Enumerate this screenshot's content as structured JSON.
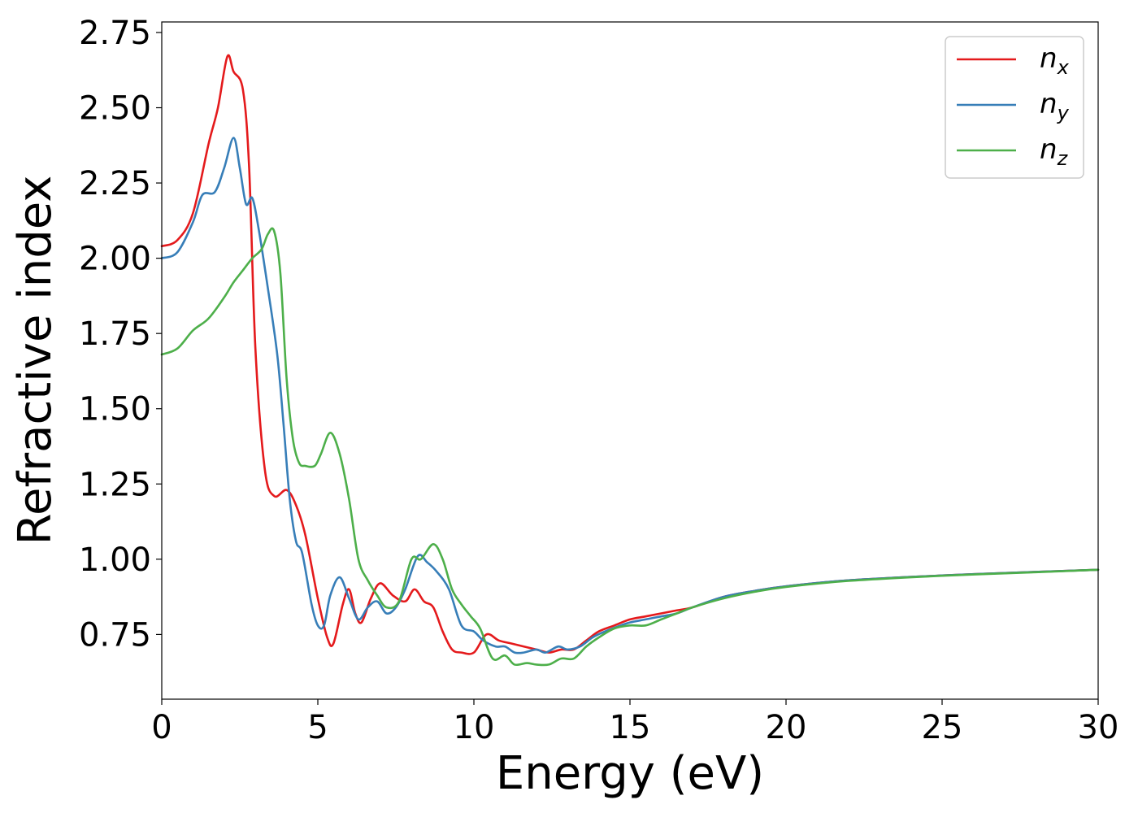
{
  "chart_data": {
    "type": "line",
    "xlabel": "Energy (eV)",
    "ylabel": "Refractive index",
    "xlim": [
      0,
      30
    ],
    "ylim": [
      0.535,
      2.785
    ],
    "xticks": [
      "0",
      "5",
      "10",
      "15",
      "20",
      "25",
      "30"
    ],
    "yticks": [
      "0.75",
      "1.00",
      "1.25",
      "1.50",
      "1.75",
      "2.00",
      "2.25",
      "2.50",
      "2.75"
    ],
    "grid": false,
    "legend_position": "top-right",
    "series": [
      {
        "name": "n_x",
        "label_base": "n",
        "label_sub": "x",
        "color": "#e41a1c",
        "points": [
          [
            0,
            2.04
          ],
          [
            0.5,
            2.06
          ],
          [
            1.0,
            2.15
          ],
          [
            1.5,
            2.38
          ],
          [
            1.8,
            2.5
          ],
          [
            2.1,
            2.67
          ],
          [
            2.3,
            2.62
          ],
          [
            2.6,
            2.56
          ],
          [
            2.8,
            2.3
          ],
          [
            3.0,
            1.7
          ],
          [
            3.3,
            1.3
          ],
          [
            3.6,
            1.21
          ],
          [
            4.0,
            1.23
          ],
          [
            4.3,
            1.18
          ],
          [
            4.6,
            1.08
          ],
          [
            5.0,
            0.87
          ],
          [
            5.3,
            0.74
          ],
          [
            5.5,
            0.72
          ],
          [
            5.8,
            0.85
          ],
          [
            6.0,
            0.9
          ],
          [
            6.2,
            0.82
          ],
          [
            6.4,
            0.79
          ],
          [
            6.7,
            0.87
          ],
          [
            7.0,
            0.92
          ],
          [
            7.4,
            0.88
          ],
          [
            7.8,
            0.86
          ],
          [
            8.1,
            0.9
          ],
          [
            8.4,
            0.86
          ],
          [
            8.7,
            0.84
          ],
          [
            9.0,
            0.76
          ],
          [
            9.3,
            0.7
          ],
          [
            9.6,
            0.69
          ],
          [
            10.0,
            0.69
          ],
          [
            10.4,
            0.75
          ],
          [
            10.8,
            0.73
          ],
          [
            11.2,
            0.72
          ],
          [
            11.6,
            0.71
          ],
          [
            12.0,
            0.7
          ],
          [
            12.4,
            0.69
          ],
          [
            12.8,
            0.7
          ],
          [
            13.2,
            0.7
          ],
          [
            13.6,
            0.73
          ],
          [
            14.0,
            0.76
          ],
          [
            14.5,
            0.78
          ],
          [
            15.0,
            0.8
          ],
          [
            15.5,
            0.81
          ],
          [
            16.0,
            0.82
          ],
          [
            16.5,
            0.83
          ],
          [
            17.0,
            0.84
          ],
          [
            18.0,
            0.875
          ],
          [
            19.0,
            0.895
          ],
          [
            20.0,
            0.91
          ],
          [
            22.0,
            0.93
          ],
          [
            25.0,
            0.946
          ],
          [
            28.0,
            0.958
          ],
          [
            30.0,
            0.965
          ]
        ]
      },
      {
        "name": "n_y",
        "label_base": "n",
        "label_sub": "y",
        "color": "#377eb8",
        "points": [
          [
            0,
            2.0
          ],
          [
            0.5,
            2.02
          ],
          [
            1.0,
            2.12
          ],
          [
            1.3,
            2.21
          ],
          [
            1.7,
            2.22
          ],
          [
            2.0,
            2.3
          ],
          [
            2.3,
            2.4
          ],
          [
            2.5,
            2.3
          ],
          [
            2.7,
            2.18
          ],
          [
            2.9,
            2.2
          ],
          [
            3.1,
            2.1
          ],
          [
            3.4,
            1.9
          ],
          [
            3.7,
            1.68
          ],
          [
            3.9,
            1.45
          ],
          [
            4.1,
            1.2
          ],
          [
            4.3,
            1.06
          ],
          [
            4.5,
            1.02
          ],
          [
            4.8,
            0.85
          ],
          [
            5.0,
            0.78
          ],
          [
            5.2,
            0.78
          ],
          [
            5.4,
            0.88
          ],
          [
            5.7,
            0.94
          ],
          [
            6.0,
            0.87
          ],
          [
            6.3,
            0.8
          ],
          [
            6.6,
            0.84
          ],
          [
            6.9,
            0.86
          ],
          [
            7.2,
            0.82
          ],
          [
            7.5,
            0.84
          ],
          [
            7.8,
            0.9
          ],
          [
            8.2,
            1.01
          ],
          [
            8.5,
            0.99
          ],
          [
            8.8,
            0.96
          ],
          [
            9.2,
            0.9
          ],
          [
            9.6,
            0.78
          ],
          [
            10.0,
            0.76
          ],
          [
            10.3,
            0.73
          ],
          [
            10.7,
            0.71
          ],
          [
            11.0,
            0.71
          ],
          [
            11.3,
            0.69
          ],
          [
            11.6,
            0.69
          ],
          [
            12.0,
            0.7
          ],
          [
            12.3,
            0.69
          ],
          [
            12.7,
            0.71
          ],
          [
            13.0,
            0.7
          ],
          [
            13.4,
            0.71
          ],
          [
            13.8,
            0.74
          ],
          [
            14.2,
            0.76
          ],
          [
            14.7,
            0.78
          ],
          [
            15.0,
            0.79
          ],
          [
            15.5,
            0.8
          ],
          [
            16.0,
            0.81
          ],
          [
            16.5,
            0.82
          ],
          [
            17.0,
            0.84
          ],
          [
            18.0,
            0.875
          ],
          [
            19.0,
            0.895
          ],
          [
            20.0,
            0.91
          ],
          [
            22.0,
            0.93
          ],
          [
            25.0,
            0.946
          ],
          [
            28.0,
            0.958
          ],
          [
            30.0,
            0.965
          ]
        ]
      },
      {
        "name": "n_z",
        "label_base": "n",
        "label_sub": "z",
        "color": "#4daf4a",
        "points": [
          [
            0,
            1.68
          ],
          [
            0.5,
            1.7
          ],
          [
            1.0,
            1.76
          ],
          [
            1.5,
            1.8
          ],
          [
            2.0,
            1.87
          ],
          [
            2.3,
            1.92
          ],
          [
            2.6,
            1.96
          ],
          [
            2.9,
            2.0
          ],
          [
            3.2,
            2.03
          ],
          [
            3.4,
            2.08
          ],
          [
            3.6,
            2.09
          ],
          [
            3.8,
            1.95
          ],
          [
            4.0,
            1.6
          ],
          [
            4.2,
            1.4
          ],
          [
            4.4,
            1.32
          ],
          [
            4.6,
            1.31
          ],
          [
            4.9,
            1.31
          ],
          [
            5.1,
            1.35
          ],
          [
            5.4,
            1.42
          ],
          [
            5.7,
            1.35
          ],
          [
            6.0,
            1.2
          ],
          [
            6.3,
            1.0
          ],
          [
            6.6,
            0.93
          ],
          [
            6.9,
            0.88
          ],
          [
            7.2,
            0.84
          ],
          [
            7.6,
            0.86
          ],
          [
            8.0,
            1.0
          ],
          [
            8.3,
            1.0
          ],
          [
            8.7,
            1.05
          ],
          [
            9.0,
            1.0
          ],
          [
            9.3,
            0.9
          ],
          [
            9.6,
            0.85
          ],
          [
            9.9,
            0.81
          ],
          [
            10.2,
            0.77
          ],
          [
            10.6,
            0.67
          ],
          [
            11.0,
            0.68
          ],
          [
            11.3,
            0.65
          ],
          [
            11.7,
            0.655
          ],
          [
            12.0,
            0.65
          ],
          [
            12.4,
            0.65
          ],
          [
            12.8,
            0.67
          ],
          [
            13.2,
            0.67
          ],
          [
            13.6,
            0.71
          ],
          [
            14.0,
            0.74
          ],
          [
            14.5,
            0.77
          ],
          [
            15.0,
            0.78
          ],
          [
            15.5,
            0.78
          ],
          [
            16.0,
            0.8
          ],
          [
            16.5,
            0.82
          ],
          [
            17.0,
            0.84
          ],
          [
            18.0,
            0.87
          ],
          [
            19.0,
            0.892
          ],
          [
            20.0,
            0.908
          ],
          [
            22.0,
            0.928
          ],
          [
            25.0,
            0.945
          ],
          [
            28.0,
            0.957
          ],
          [
            30.0,
            0.965
          ]
        ]
      }
    ]
  }
}
